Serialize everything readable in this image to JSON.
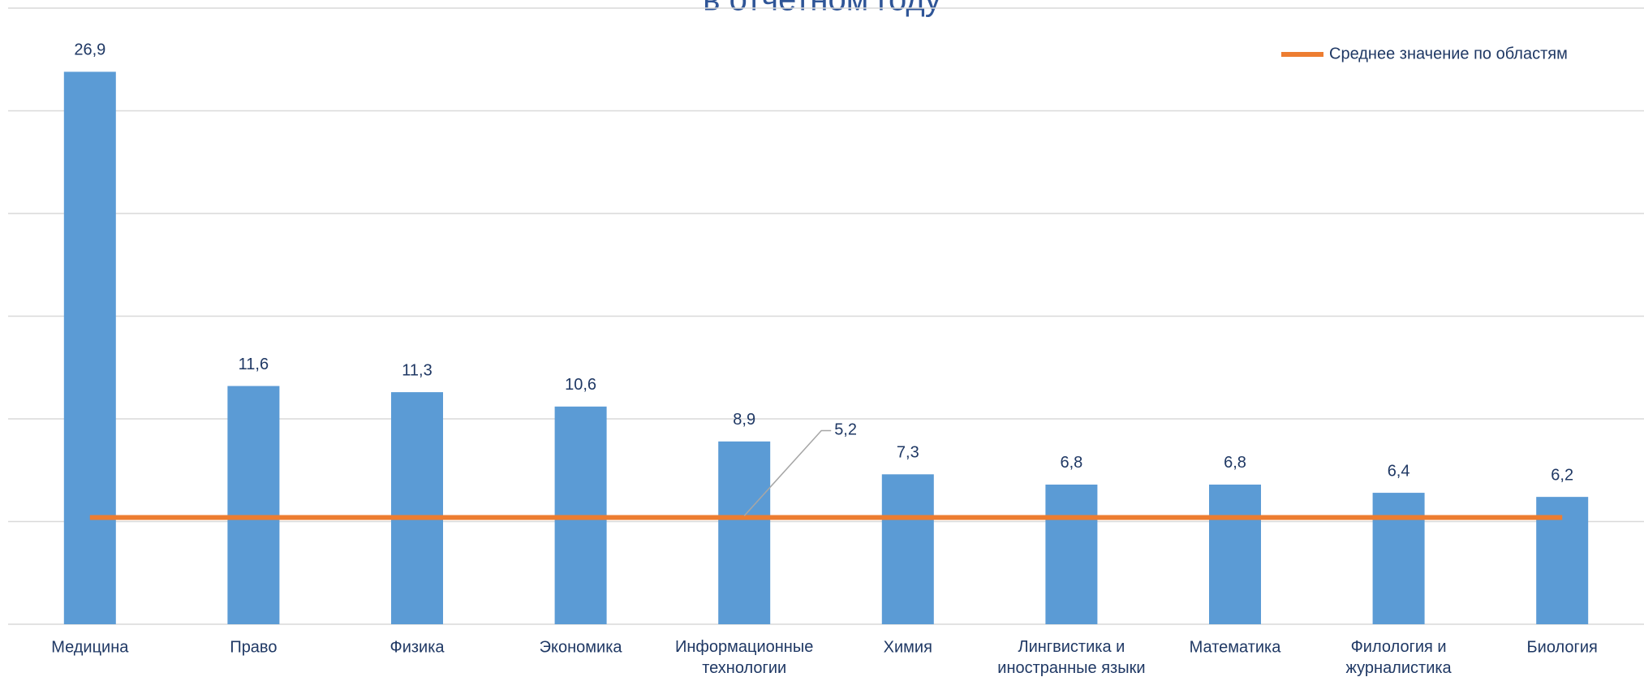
{
  "chart_data": {
    "type": "bar",
    "title": "в отчетном году",
    "categories": [
      "Медицина",
      "Право",
      "Физика",
      "Экономика",
      "Информационные\nтехнологии",
      "Химия",
      "Лингвистика и\nиностранные языки",
      "Математика",
      "Филология и\nжурналистика",
      "Биология"
    ],
    "values": [
      26.9,
      11.6,
      11.3,
      10.6,
      8.9,
      7.3,
      6.8,
      6.8,
      6.4,
      6.2
    ],
    "value_labels": [
      "26,9",
      "11,6",
      "11,3",
      "10,6",
      "8,9",
      "7,3",
      "6,8",
      "6,8",
      "6,4",
      "6,2"
    ],
    "color": "#5b9bd5",
    "average": {
      "name": "Среднее значение по областям",
      "color": "#ed7d31",
      "value": 5.2,
      "value_label": "5,2"
    },
    "ylim": [
      0,
      30
    ],
    "yticks": [
      0,
      5,
      10,
      15,
      20,
      25,
      30
    ],
    "grid": true,
    "legend": "top-right"
  }
}
